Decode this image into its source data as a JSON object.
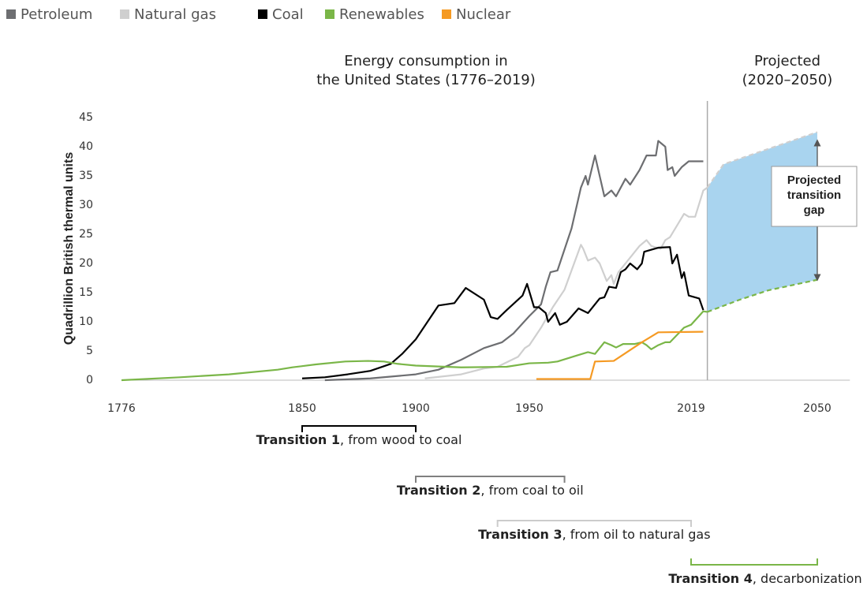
{
  "chart_data": {
    "type": "line",
    "title": [
      "Energy consumption in",
      "the United States (1776–2019)"
    ],
    "subtitle": [
      "Projected",
      "(2020–2050)"
    ],
    "y_label": "Quadrillion British thermal units",
    "xlim": [
      1776,
      2058
    ],
    "xticks": [
      1776,
      1850,
      1900,
      1950,
      2019,
      2050
    ],
    "ylim": [
      0,
      45
    ],
    "yticks": [
      0,
      5,
      10,
      15,
      20,
      25,
      30,
      35,
      40,
      45
    ],
    "divider_x": 2023,
    "series": [
      {
        "name": "Petroleum",
        "color": "#6d6e71",
        "x": [
          1860,
          1880,
          1900,
          1910,
          1920,
          1930,
          1938,
          1943,
          1950,
          1955,
          1957,
          1959,
          1962,
          1968,
          1972,
          1974,
          1975,
          1978,
          1982,
          1985,
          1987,
          1991,
          1993,
          1997,
          2000,
          2004,
          2005,
          2008,
          2009,
          2011,
          2012,
          2015,
          2018,
          2022
        ],
        "values": [
          0,
          0.3,
          1,
          1.8,
          3.5,
          5.5,
          6.5,
          8,
          11,
          13,
          16,
          18.5,
          18.8,
          26,
          33,
          35,
          33.5,
          38.5,
          31.5,
          32.5,
          31.5,
          34.5,
          33.5,
          36,
          38.5,
          38.5,
          41,
          40,
          36,
          36.5,
          35,
          36.5,
          37.5,
          37.5
        ]
      },
      {
        "name": "Natural gas",
        "color": "#cfcfcf",
        "x": [
          1904,
          1920,
          1930,
          1936,
          1945,
          1948,
          1950,
          1955,
          1960,
          1965,
          1970,
          1972,
          1973,
          1975,
          1978,
          1980,
          1983,
          1985,
          1986,
          1988,
          1990,
          1994,
          1997,
          2000,
          2002,
          2006,
          2008,
          2010,
          2013,
          2016,
          2018,
          2020,
          2022,
          2023,
          2027,
          2050
        ],
        "values": [
          0.3,
          1,
          2,
          2.3,
          4,
          5.5,
          6,
          9,
          12.5,
          15.5,
          21,
          23.2,
          22.5,
          20.5,
          21,
          20,
          17,
          18,
          16.5,
          18.5,
          19.5,
          21.5,
          23,
          24,
          23,
          22.5,
          24,
          24.5,
          26.5,
          28.5,
          28,
          28,
          32.5,
          33,
          37,
          42.5
        ]
      },
      {
        "name": "Coal",
        "color": "#000000",
        "x": [
          1850,
          1860,
          1870,
          1880,
          1889,
          1894,
          1900,
          1910,
          1917,
          1922,
          1930,
          1933,
          1936,
          1940,
          1947,
          1949,
          1952,
          1954,
          1957,
          1958,
          1961,
          1963,
          1966,
          1971,
          1975,
          1980,
          1982,
          1984,
          1987,
          1989,
          1991,
          1993,
          1996,
          1998,
          1999,
          2005,
          2010,
          2011,
          2013,
          2015,
          2016,
          2018,
          2021,
          2022
        ],
        "values": [
          0.3,
          0.5,
          1,
          1.6,
          2.8,
          4.5,
          7,
          12.8,
          13.2,
          15.8,
          13.8,
          10.8,
          10.5,
          12,
          14.5,
          16.5,
          12.5,
          12.5,
          11.5,
          10,
          11.5,
          9.5,
          10,
          12.3,
          11.5,
          14,
          14.2,
          16,
          15.8,
          18.5,
          19,
          20,
          19,
          20,
          22,
          22.7,
          22.8,
          20,
          21.5,
          17.5,
          18.5,
          14.5,
          14,
          12
        ]
      },
      {
        "name": "Renewables",
        "color": "#7ab648",
        "x": [
          1776,
          1800,
          1820,
          1840,
          1846,
          1856,
          1869,
          1879,
          1886,
          1892,
          1900,
          1920,
          1940,
          1950,
          1958,
          1962,
          1970,
          1975,
          1978,
          1982,
          1985,
          1987,
          1990,
          1995,
          1998,
          2000,
          2002,
          2005,
          2008,
          2010,
          2016,
          2019,
          2022,
          2023,
          2031,
          2038,
          2050
        ],
        "values": [
          0,
          0.5,
          1,
          1.8,
          2.2,
          2.7,
          3.2,
          3.3,
          3.2,
          2.8,
          2.5,
          2.2,
          2.3,
          2.9,
          3,
          3.2,
          4.2,
          4.8,
          4.5,
          6.5,
          6,
          5.6,
          6.2,
          6.2,
          6.5,
          6,
          5.3,
          6,
          6.5,
          6.5,
          9,
          9.5,
          11.8,
          11.7,
          13.8,
          15.4,
          17.2
        ]
      },
      {
        "name": "Nuclear",
        "color": "#f59a23",
        "x": [
          1953,
          1976,
          1978,
          1986,
          1998,
          2005,
          2022
        ],
        "values": [
          0.2,
          0.2,
          3.2,
          3.3,
          6.5,
          8.2,
          8.3
        ]
      }
    ],
    "gap_band": {
      "between": [
        1,
        3
      ],
      "color": "#a9d4ef"
    },
    "annotation": [
      "Projected",
      "transition",
      "gap"
    ],
    "transitions": [
      {
        "name": "Transition 1",
        "text": ", from wood to coal",
        "start": 1850,
        "end": 1900,
        "color": "#000000"
      },
      {
        "name": "Transition 2",
        "text": ", from coal to oil",
        "start": 1900,
        "end": 1965,
        "color": "#808080"
      },
      {
        "name": "Transition 3",
        "text": ", from oil to natural gas",
        "start": 1936,
        "end": 2019,
        "color": "#cccccc"
      },
      {
        "name": "Transition 4",
        "text": ", decarbonization",
        "start": 2019,
        "end": 2050,
        "color": "#7ab648"
      }
    ]
  }
}
